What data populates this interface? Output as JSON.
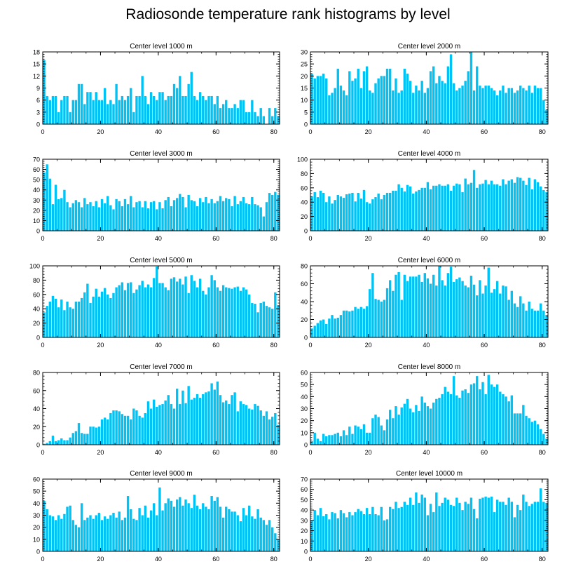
{
  "figure": {
    "title": "Radiosonde temperature rank histograms by level"
  },
  "colors": {
    "bar": "#00c3f5",
    "axis": "#000000",
    "background": "#ffffff"
  },
  "chart_data": [
    {
      "type": "bar",
      "title": "Center level 1000 m",
      "ylim": [
        0,
        18
      ],
      "yticks": [
        0,
        3,
        6,
        9,
        12,
        15,
        18
      ],
      "xlim": [
        0,
        82
      ],
      "xticks": [
        0,
        20,
        40,
        60,
        80
      ],
      "x_start": 0,
      "values": [
        16,
        7,
        6,
        7,
        7,
        3,
        6,
        7,
        7,
        3,
        6,
        6,
        10,
        10,
        5,
        8,
        8,
        6,
        8,
        6,
        6,
        9,
        5,
        6,
        5,
        10,
        6,
        7,
        6,
        7,
        9,
        3,
        7,
        7,
        12,
        7,
        5,
        8,
        7,
        6,
        8,
        8,
        6,
        7,
        7,
        10,
        9,
        12,
        7,
        7,
        10,
        13,
        7,
        6,
        8,
        7,
        6,
        7,
        7,
        5,
        7,
        4,
        5,
        6,
        4,
        4,
        5,
        4,
        6,
        6,
        3,
        3,
        6,
        3,
        2,
        4,
        2,
        0,
        4,
        2,
        4,
        2
      ]
    },
    {
      "type": "bar",
      "title": "Center level 2000 m",
      "ylim": [
        0,
        30
      ],
      "yticks": [
        0,
        5,
        10,
        15,
        20,
        25,
        30
      ],
      "xlim": [
        0,
        82
      ],
      "xticks": [
        0,
        20,
        40,
        60,
        80
      ],
      "x_start": 0,
      "values": [
        21,
        19,
        20,
        20,
        21,
        19,
        12,
        13,
        15,
        23,
        16,
        14,
        12,
        22,
        18,
        19,
        23,
        15,
        22,
        24,
        14,
        13,
        17,
        19,
        20,
        20,
        23,
        23,
        14,
        19,
        13,
        14,
        23,
        21,
        18,
        13,
        16,
        14,
        18,
        13,
        15,
        22,
        24,
        17,
        20,
        18,
        17,
        24,
        29,
        17,
        14,
        15,
        16,
        18,
        22,
        30,
        14,
        24,
        16,
        15,
        16,
        16,
        15,
        14,
        12,
        14,
        16,
        13,
        15,
        15,
        13,
        14,
        16,
        15,
        14,
        16,
        13,
        16,
        15,
        15,
        10,
        6
      ]
    },
    {
      "type": "bar",
      "title": "Center level 3000 m",
      "ylim": [
        0,
        70
      ],
      "yticks": [
        0,
        10,
        20,
        30,
        40,
        50,
        60,
        70
      ],
      "xlim": [
        0,
        82
      ],
      "xticks": [
        0,
        20,
        40,
        60,
        80
      ],
      "x_start": 0,
      "values": [
        57,
        65,
        51,
        26,
        45,
        31,
        32,
        40,
        28,
        23,
        27,
        30,
        28,
        23,
        32,
        26,
        28,
        24,
        29,
        23,
        31,
        27,
        34,
        25,
        21,
        31,
        29,
        24,
        31,
        26,
        34,
        23,
        28,
        29,
        23,
        29,
        22,
        28,
        29,
        21,
        28,
        22,
        30,
        33,
        24,
        30,
        32,
        36,
        33,
        23,
        35,
        30,
        29,
        24,
        32,
        28,
        33,
        27,
        31,
        27,
        29,
        34,
        29,
        32,
        31,
        24,
        34,
        26,
        29,
        33,
        27,
        26,
        33,
        26,
        25,
        23,
        14,
        28,
        37,
        35,
        38,
        35
      ]
    },
    {
      "type": "bar",
      "title": "Center level 4000 m",
      "ylim": [
        0,
        100
      ],
      "yticks": [
        0,
        20,
        40,
        60,
        80,
        100
      ],
      "xlim": [
        0,
        82
      ],
      "xticks": [
        0,
        20,
        40,
        60,
        80
      ],
      "x_start": 0,
      "values": [
        48,
        54,
        47,
        56,
        53,
        40,
        48,
        38,
        43,
        50,
        48,
        46,
        51,
        52,
        53,
        41,
        53,
        45,
        57,
        40,
        38,
        44,
        47,
        52,
        44,
        50,
        53,
        53,
        56,
        56,
        65,
        60,
        55,
        64,
        62,
        52,
        55,
        57,
        60,
        60,
        68,
        58,
        63,
        63,
        65,
        63,
        63,
        65,
        56,
        63,
        66,
        65,
        54,
        73,
        65,
        67,
        85,
        60,
        65,
        66,
        71,
        65,
        70,
        65,
        65,
        63,
        72,
        65,
        70,
        72,
        67,
        75,
        74,
        70,
        64,
        74,
        58,
        72,
        68,
        62,
        57,
        54
      ]
    },
    {
      "type": "bar",
      "title": "Center level 5000 m",
      "ylim": [
        0,
        100
      ],
      "yticks": [
        0,
        20,
        40,
        60,
        80,
        100
      ],
      "xlim": [
        0,
        82
      ],
      "xticks": [
        0,
        20,
        40,
        60,
        80
      ],
      "x_start": 0,
      "values": [
        35,
        44,
        50,
        58,
        54,
        42,
        53,
        38,
        50,
        42,
        40,
        50,
        50,
        55,
        63,
        75,
        48,
        57,
        68,
        57,
        64,
        69,
        60,
        55,
        62,
        70,
        73,
        77,
        66,
        76,
        77,
        62,
        67,
        73,
        79,
        70,
        74,
        70,
        83,
        99,
        76,
        76,
        70,
        66,
        82,
        84,
        78,
        82,
        74,
        85,
        62,
        87,
        79,
        70,
        82,
        65,
        60,
        70,
        87,
        80,
        70,
        65,
        73,
        70,
        69,
        68,
        70,
        71,
        65,
        70,
        67,
        60,
        48,
        47,
        35,
        48,
        50,
        44,
        42,
        40,
        63,
        45
      ]
    },
    {
      "type": "bar",
      "title": "Center level 6000 m",
      "ylim": [
        0,
        80
      ],
      "yticks": [
        0,
        20,
        40,
        60,
        80
      ],
      "xlim": [
        0,
        82
      ],
      "xticks": [
        0,
        20,
        40,
        60,
        80
      ],
      "x_start": 0,
      "values": [
        10,
        13,
        16,
        19,
        20,
        15,
        21,
        25,
        21,
        22,
        25,
        30,
        30,
        29,
        30,
        34,
        32,
        34,
        32,
        35,
        54,
        72,
        43,
        42,
        40,
        42,
        55,
        64,
        52,
        70,
        73,
        42,
        70,
        63,
        68,
        68,
        68,
        70,
        62,
        72,
        66,
        60,
        70,
        58,
        80,
        64,
        58,
        72,
        79,
        62,
        65,
        67,
        63,
        58,
        56,
        69,
        59,
        47,
        64,
        49,
        58,
        78,
        50,
        54,
        63,
        49,
        58,
        57,
        42,
        52,
        38,
        34,
        46,
        38,
        30,
        40,
        32,
        30,
        30,
        38,
        30,
        25
      ]
    },
    {
      "type": "bar",
      "title": "Center level 7000 m",
      "ylim": [
        0,
        80
      ],
      "yticks": [
        0,
        20,
        40,
        60,
        80
      ],
      "xlim": [
        0,
        82
      ],
      "xticks": [
        0,
        20,
        40,
        60,
        80
      ],
      "x_start": 0,
      "values": [
        1,
        2,
        4,
        10,
        4,
        5,
        7,
        5,
        5,
        8,
        13,
        15,
        24,
        13,
        12,
        12,
        20,
        20,
        19,
        20,
        28,
        30,
        28,
        35,
        38,
        38,
        37,
        34,
        32,
        32,
        28,
        40,
        38,
        32,
        30,
        35,
        48,
        40,
        50,
        42,
        44,
        45,
        49,
        55,
        45,
        40,
        62,
        45,
        60,
        46,
        65,
        50,
        52,
        56,
        52,
        56,
        58,
        59,
        68,
        61,
        70,
        55,
        47,
        49,
        45,
        55,
        58,
        37,
        48,
        45,
        44,
        40,
        39,
        45,
        43,
        38,
        32,
        37,
        28,
        31,
        35,
        22
      ]
    },
    {
      "type": "bar",
      "title": "Center level 8000 m",
      "ylim": [
        0,
        60
      ],
      "yticks": [
        0,
        10,
        20,
        30,
        40,
        50,
        60
      ],
      "xlim": [
        0,
        82
      ],
      "xticks": [
        0,
        20,
        40,
        60,
        80
      ],
      "x_start": 0,
      "values": [
        3,
        10,
        5,
        3,
        9,
        7,
        8,
        8,
        9,
        10,
        7,
        12,
        8,
        15,
        9,
        16,
        15,
        13,
        17,
        10,
        10,
        22,
        25,
        23,
        16,
        12,
        21,
        29,
        22,
        32,
        25,
        31,
        34,
        38,
        30,
        27,
        33,
        28,
        40,
        35,
        32,
        30,
        35,
        38,
        39,
        42,
        48,
        44,
        42,
        57,
        41,
        39,
        45,
        46,
        43,
        50,
        51,
        57,
        46,
        52,
        42,
        58,
        50,
        48,
        50,
        44,
        42,
        40,
        36,
        41,
        26,
        26,
        26,
        33,
        24,
        22,
        19,
        20,
        17,
        13,
        9,
        5
      ]
    },
    {
      "type": "bar",
      "title": "Center level 9000 m",
      "ylim": [
        0,
        60
      ],
      "yticks": [
        0,
        10,
        20,
        30,
        40,
        50,
        60
      ],
      "xlim": [
        0,
        82
      ],
      "xticks": [
        0,
        20,
        40,
        60,
        80
      ],
      "x_start": 0,
      "values": [
        42,
        35,
        30,
        29,
        26,
        30,
        27,
        31,
        37,
        38,
        26,
        22,
        20,
        40,
        26,
        28,
        30,
        27,
        30,
        32,
        26,
        29,
        27,
        30,
        32,
        28,
        33,
        26,
        28,
        46,
        35,
        27,
        26,
        36,
        30,
        38,
        28,
        34,
        40,
        30,
        53,
        34,
        40,
        44,
        42,
        37,
        43,
        45,
        38,
        43,
        40,
        36,
        47,
        38,
        35,
        40,
        37,
        35,
        46,
        42,
        45,
        37,
        28,
        37,
        35,
        33,
        33,
        30,
        25,
        36,
        30,
        38,
        29,
        27,
        35,
        28,
        26,
        22,
        26,
        20,
        15,
        10
      ]
    },
    {
      "type": "bar",
      "title": "Center level 10000 m",
      "ylim": [
        0,
        70
      ],
      "yticks": [
        0,
        10,
        20,
        30,
        40,
        50,
        60,
        70
      ],
      "xlim": [
        0,
        82
      ],
      "xticks": [
        0,
        20,
        40,
        60,
        80
      ],
      "x_start": 0,
      "values": [
        30,
        40,
        35,
        42,
        34,
        36,
        31,
        38,
        37,
        32,
        40,
        37,
        33,
        38,
        35,
        38,
        41,
        39,
        36,
        42,
        36,
        43,
        36,
        35,
        43,
        30,
        31,
        43,
        41,
        48,
        42,
        43,
        48,
        45,
        52,
        45,
        57,
        47,
        55,
        52,
        35,
        46,
        38,
        57,
        44,
        47,
        52,
        50,
        45,
        44,
        52,
        47,
        40,
        48,
        46,
        52,
        41,
        32,
        51,
        52,
        53,
        52,
        53,
        38,
        50,
        48,
        48,
        45,
        52,
        48,
        33,
        45,
        40,
        55,
        48,
        44,
        46,
        48,
        48,
        61,
        48,
        47
      ]
    }
  ]
}
